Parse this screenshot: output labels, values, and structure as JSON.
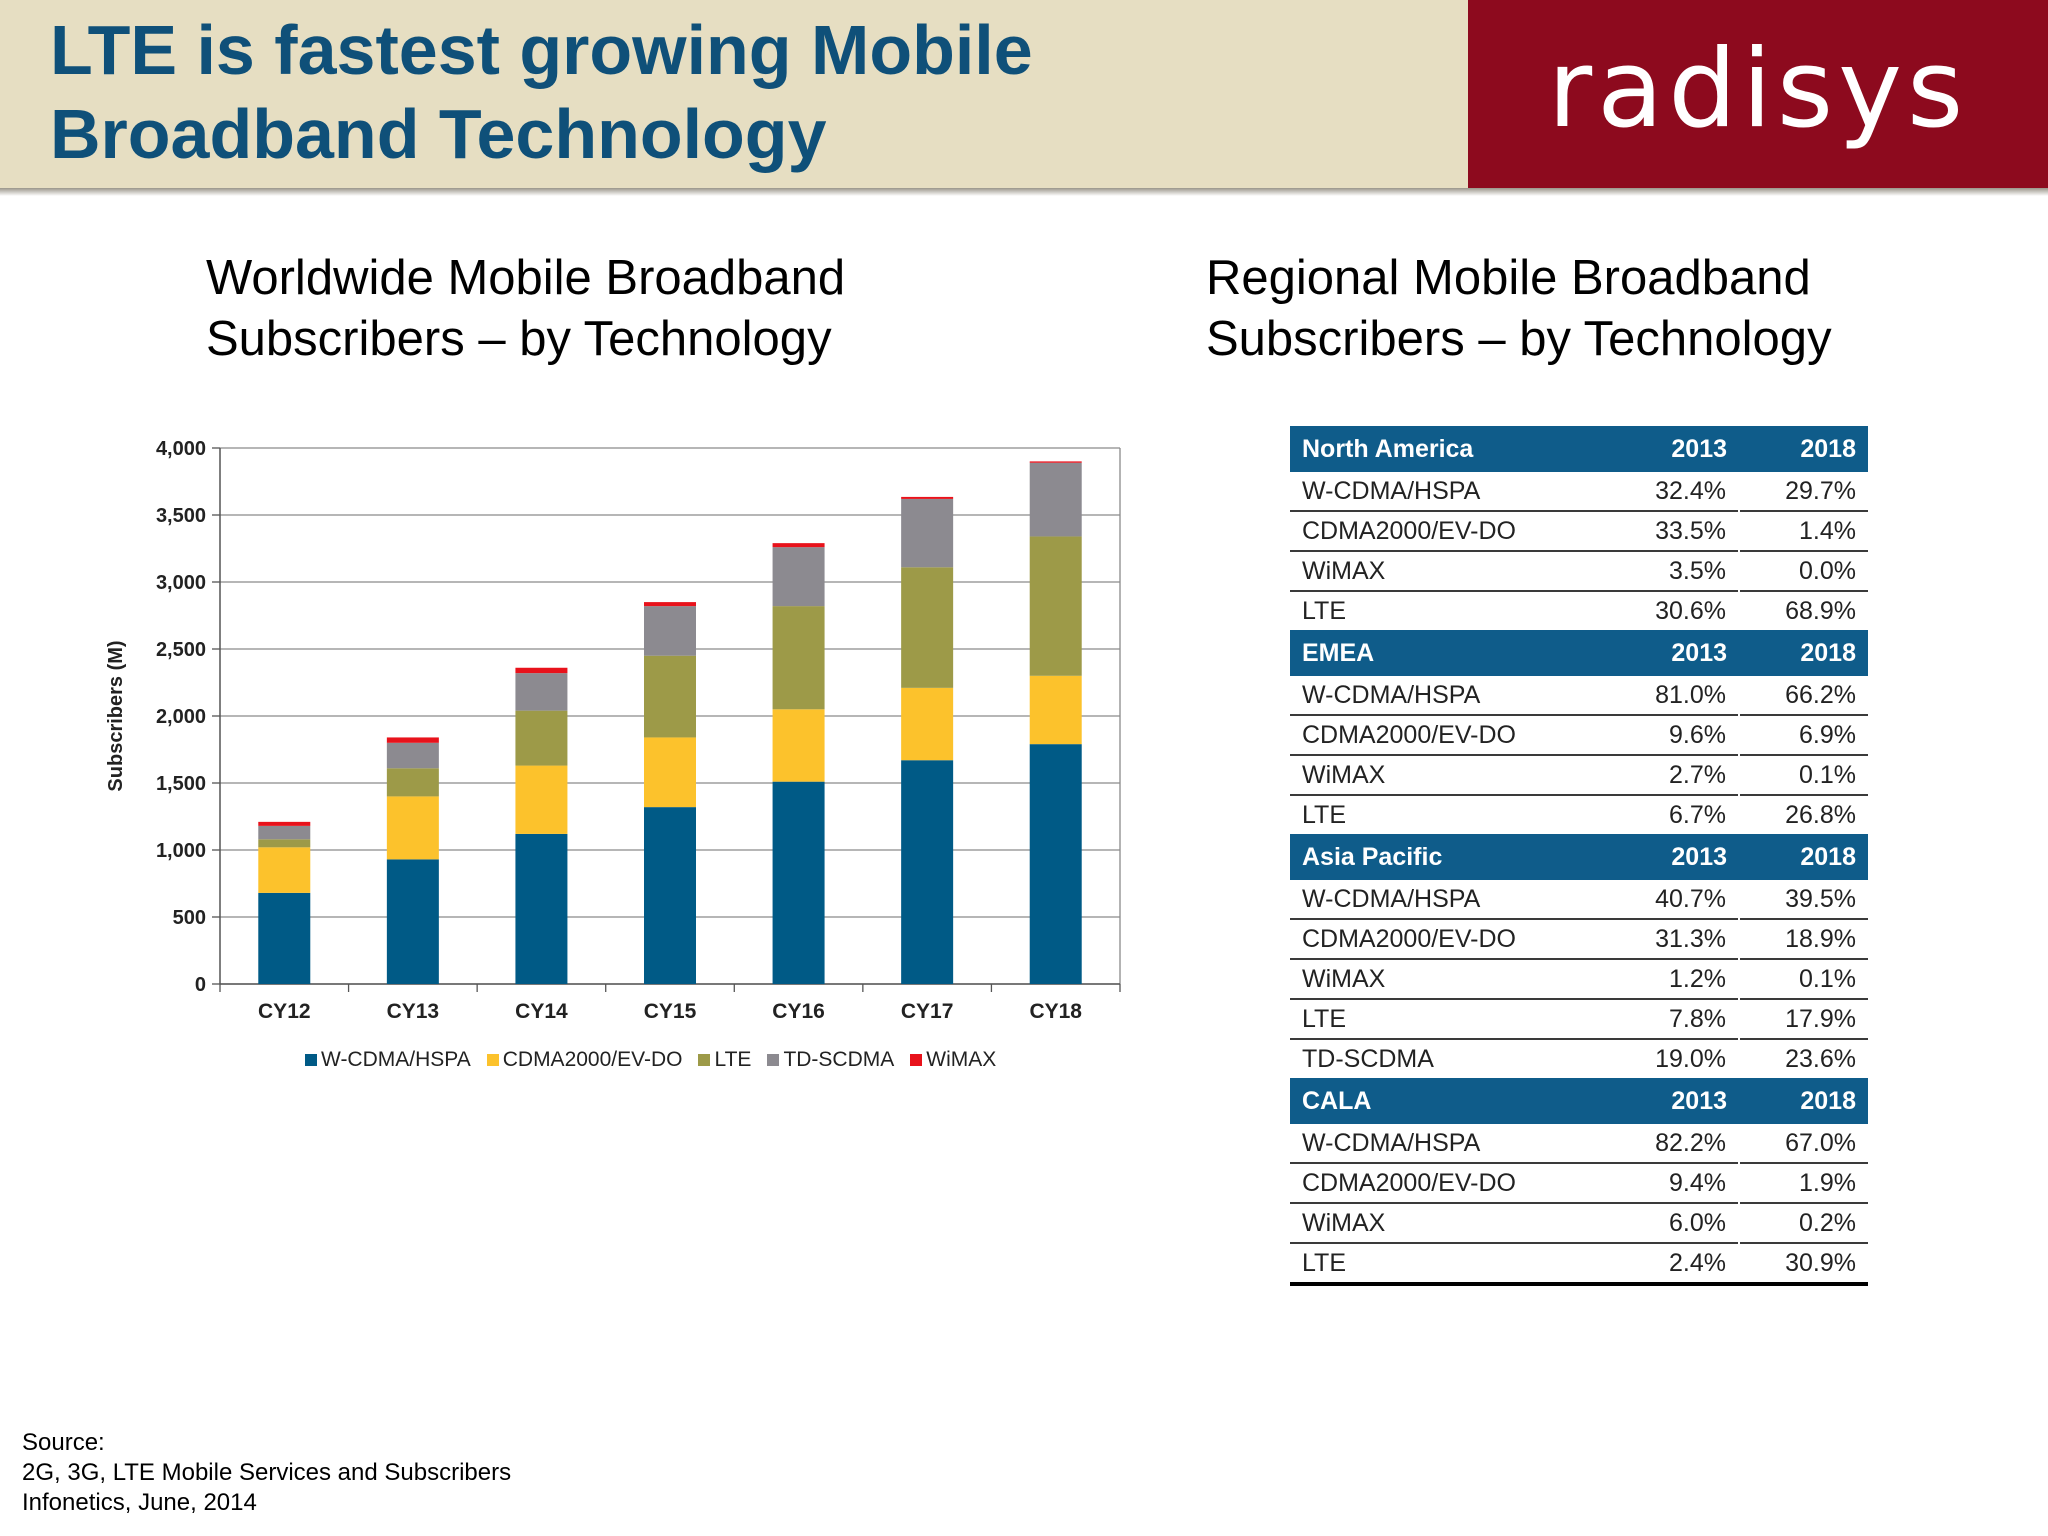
{
  "header": {
    "title_line1": "LTE is fastest growing Mobile",
    "title_line2": "Broadband Technology",
    "logo_text": "radisys"
  },
  "left_heading": {
    "line1": "Worldwide Mobile Broadband",
    "line2": "Subscribers – by Technology"
  },
  "right_heading": {
    "line1": "Regional Mobile Broadband",
    "line2": "Subscribers – by Technology"
  },
  "chart_data": {
    "type": "bar",
    "stacked": true,
    "title": "",
    "xlabel": "",
    "ylabel": "Subscribers (M)",
    "ylim": [
      0,
      4000
    ],
    "y_ticks": [
      0,
      500,
      1000,
      1500,
      2000,
      2500,
      3000,
      3500,
      4000
    ],
    "y_tick_labels": [
      "0",
      "500",
      "1,000",
      "1,500",
      "2,000",
      "2,500",
      "3,000",
      "3,500",
      "4,000"
    ],
    "grid": true,
    "legend_position": "bottom",
    "categories": [
      "CY12",
      "CY13",
      "CY14",
      "CY15",
      "CY16",
      "CY17",
      "CY18"
    ],
    "series": [
      {
        "name": "W-CDMA/HSPA",
        "color": "#005a86",
        "values": [
          680,
          930,
          1120,
          1320,
          1510,
          1670,
          1790
        ]
      },
      {
        "name": "CDMA2000/EV-DO",
        "color": "#fcc22c",
        "values": [
          340,
          470,
          510,
          520,
          540,
          540,
          510
        ]
      },
      {
        "name": "LTE",
        "color": "#9d9a48",
        "values": [
          60,
          210,
          410,
          610,
          770,
          900,
          1040
        ]
      },
      {
        "name": "TD-SCDMA",
        "color": "#8c8a90",
        "values": [
          100,
          190,
          280,
          370,
          440,
          510,
          550
        ]
      },
      {
        "name": "WiMAX",
        "color": "#e8121b",
        "values": [
          30,
          40,
          40,
          30,
          30,
          15,
          10
        ]
      }
    ]
  },
  "regional_table": {
    "groups": [
      {
        "name": "North America",
        "col1": "2013",
        "col2": "2018",
        "rows": [
          {
            "tech": "W-CDMA/HSPA",
            "v2013": "32.4%",
            "v2018": "29.7%"
          },
          {
            "tech": "CDMA2000/EV-DO",
            "v2013": "33.5%",
            "v2018": "1.4%"
          },
          {
            "tech": "WiMAX",
            "v2013": "3.5%",
            "v2018": "0.0%"
          },
          {
            "tech": "LTE",
            "v2013": "30.6%",
            "v2018": "68.9%"
          }
        ]
      },
      {
        "name": "EMEA",
        "col1": "2013",
        "col2": "2018",
        "rows": [
          {
            "tech": "W-CDMA/HSPA",
            "v2013": "81.0%",
            "v2018": "66.2%"
          },
          {
            "tech": "CDMA2000/EV-DO",
            "v2013": "9.6%",
            "v2018": "6.9%"
          },
          {
            "tech": "WiMAX",
            "v2013": "2.7%",
            "v2018": "0.1%"
          },
          {
            "tech": "LTE",
            "v2013": "6.7%",
            "v2018": "26.8%"
          }
        ]
      },
      {
        "name": "Asia Pacific",
        "col1": "2013",
        "col2": "2018",
        "rows": [
          {
            "tech": "W-CDMA/HSPA",
            "v2013": "40.7%",
            "v2018": "39.5%"
          },
          {
            "tech": "CDMA2000/EV-DO",
            "v2013": "31.3%",
            "v2018": "18.9%"
          },
          {
            "tech": "WiMAX",
            "v2013": "1.2%",
            "v2018": "0.1%"
          },
          {
            "tech": "LTE",
            "v2013": "7.8%",
            "v2018": "17.9%"
          },
          {
            "tech": "TD-SCDMA",
            "v2013": "19.0%",
            "v2018": "23.6%"
          }
        ]
      },
      {
        "name": "CALA",
        "col1": "2013",
        "col2": "2018",
        "rows": [
          {
            "tech": "W-CDMA/HSPA",
            "v2013": "82.2%",
            "v2018": "67.0%"
          },
          {
            "tech": "CDMA2000/EV-DO",
            "v2013": "9.4%",
            "v2018": "1.9%"
          },
          {
            "tech": "WiMAX",
            "v2013": "6.0%",
            "v2018": "0.2%"
          },
          {
            "tech": "LTE",
            "v2013": "2.4%",
            "v2018": "30.9%"
          }
        ]
      }
    ]
  },
  "source": {
    "line1": "Source:",
    "line2": "2G, 3G, LTE Mobile Services and Subscribers",
    "line3": "Infonetics, June, 2014"
  },
  "colors": {
    "header_bg": "#e6dec2",
    "title_blue": "#0f5079",
    "brand_red": "#8d0a1e",
    "table_header_blue": "#0f5c8a"
  }
}
